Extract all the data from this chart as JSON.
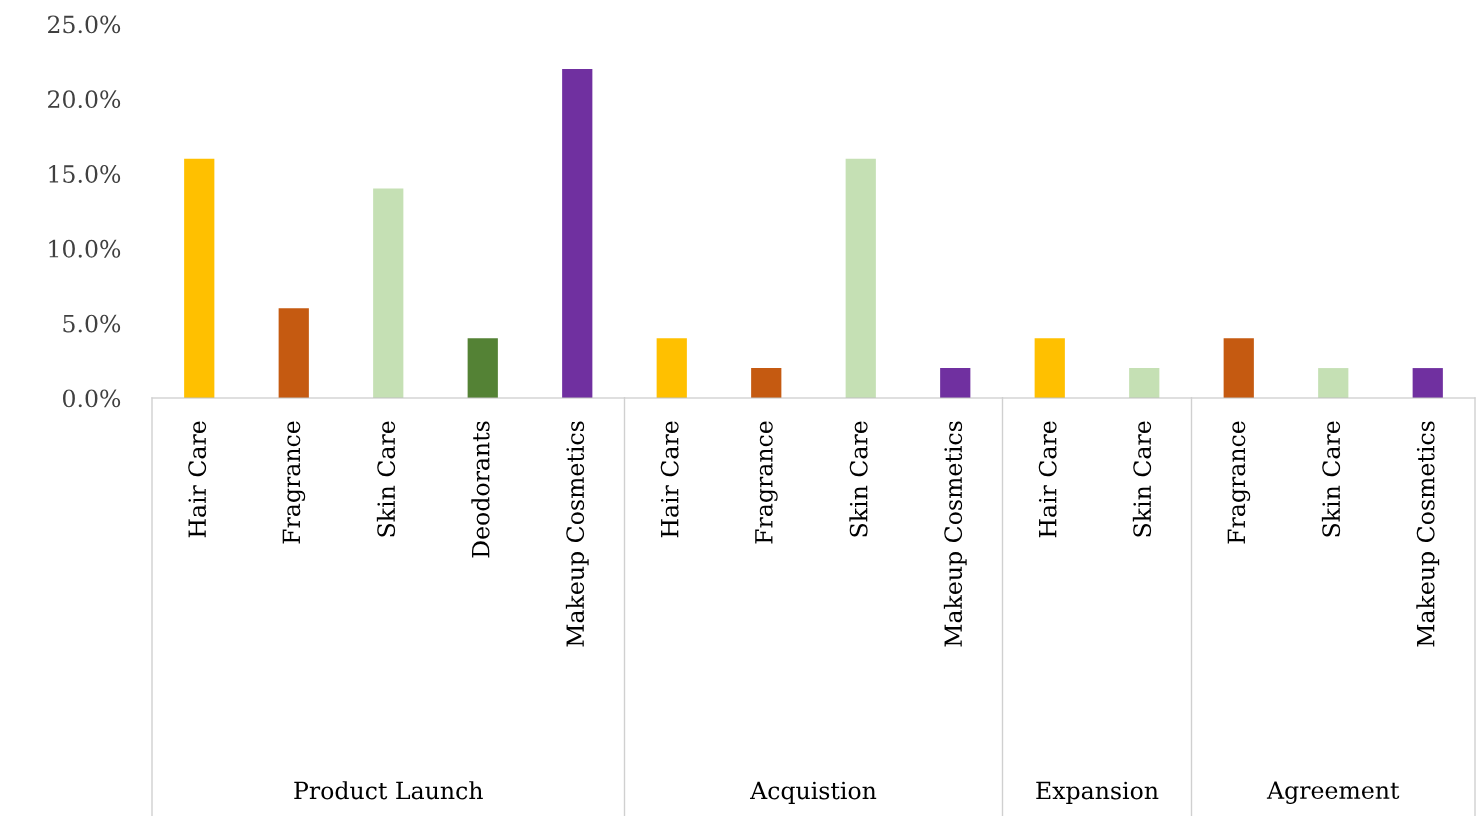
{
  "chart_data": [
    {
      "type": "bar",
      "xlabel": "Product Launch",
      "categories": [
        "Hair Care",
        "Fragrance",
        "Skin Care",
        "Deodorants",
        "Makeup Cosmetics"
      ],
      "values": [
        16,
        6,
        14,
        4,
        22
      ],
      "colors": [
        "#ffc000",
        "#c55a11",
        "#c5e0b4",
        "#548235",
        "#7030a0"
      ],
      "ylim": [
        0,
        25
      ],
      "yticks": [
        {
          "value": 0,
          "label": "0.0%"
        },
        {
          "value": 5,
          "label": "5.0%"
        },
        {
          "value": 10,
          "label": "10.0%"
        },
        {
          "value": 15,
          "label": "15.0%"
        },
        {
          "value": 20,
          "label": "20.0%"
        },
        {
          "value": 25,
          "label": "25.0%"
        }
      ],
      "grid": false,
      "legend": false
    },
    {
      "type": "bar",
      "xlabel": "Acquistion",
      "categories": [
        "Hair Care",
        "Fragrance",
        "Skin Care",
        "Makeup Cosmetics"
      ],
      "values": [
        4,
        2,
        16,
        2
      ],
      "colors": [
        "#ffc000",
        "#c55a11",
        "#c5e0b4",
        "#7030a0"
      ],
      "ylim": [
        0,
        25
      ],
      "tick_labels": "x",
      "grid": false,
      "legend": false
    },
    {
      "type": "bar",
      "xlabel": "Expansion",
      "categories": [
        "Hair Care",
        "Skin Care"
      ],
      "values": [
        4,
        2
      ],
      "colors": [
        "#ffc000",
        "#c5e0b4"
      ],
      "ylim": [
        0,
        25
      ],
      "tick_labels": "x",
      "grid": false,
      "legend": false
    },
    {
      "type": "bar",
      "xlabel": "Agreement",
      "categories": [
        "Fragrance",
        "Skin Care",
        "Makeup Cosmetics"
      ],
      "values": [
        4,
        2,
        2
      ],
      "colors": [
        "#c55a11",
        "#c5e0b4",
        "#7030a0"
      ],
      "ylim": [
        0,
        25
      ],
      "tick_labels": "x",
      "grid": false,
      "legend": false
    }
  ]
}
